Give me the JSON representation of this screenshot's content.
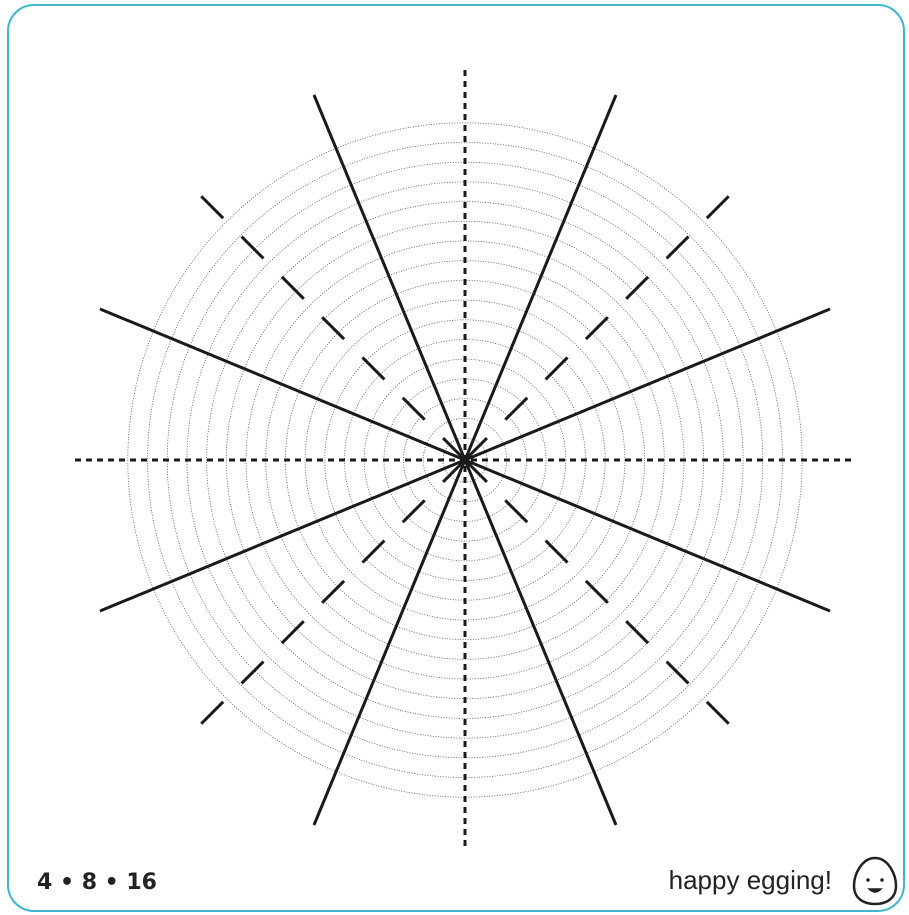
{
  "footer": {
    "pattern": "4 • 8 • 16",
    "message": "happy egging!"
  }
}
